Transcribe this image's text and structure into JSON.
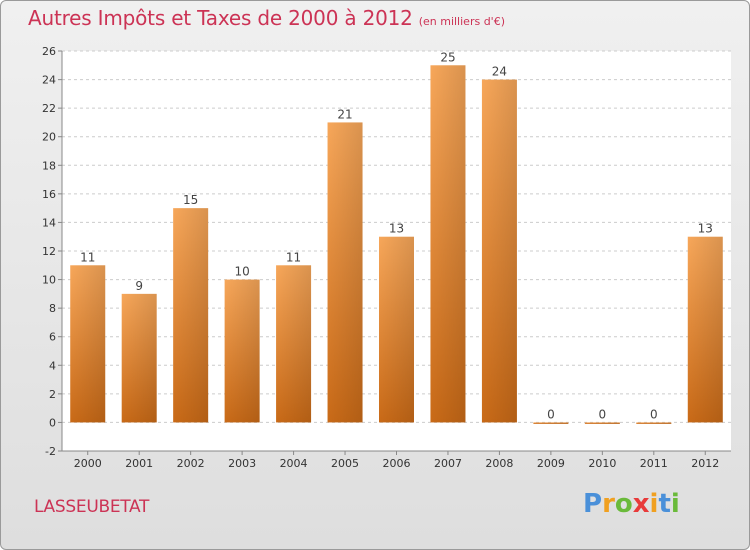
{
  "title": "Autres Impôts et Taxes de 2000 à 2012",
  "unit_note": "(en milliers d'€)",
  "commune": "LASSEUBETAT",
  "logo": {
    "text": "Proxiti",
    "letters": [
      {
        "ch": "P",
        "color": "#4a90d9"
      },
      {
        "ch": "r",
        "color": "#f0a020"
      },
      {
        "ch": "o",
        "color": "#6aba3a"
      },
      {
        "ch": "x",
        "color": "#e83a3a"
      },
      {
        "ch": "i",
        "color": "#f0a020"
      },
      {
        "ch": "t",
        "color": "#4a90d9"
      },
      {
        "ch": "i",
        "color": "#6aba3a"
      }
    ]
  },
  "colors": {
    "bar_top": "#f7a75a",
    "bar_bottom": "#c96a17",
    "title": "#cc3355",
    "grid": "#cccccc",
    "axis": "#888888",
    "text": "#333333"
  },
  "chart_data": {
    "type": "bar",
    "categories": [
      "2000",
      "2001",
      "2002",
      "2003",
      "2004",
      "2005",
      "2006",
      "2007",
      "2008",
      "2009",
      "2010",
      "2011",
      "2012"
    ],
    "values": [
      11,
      9,
      15,
      10,
      11,
      21,
      13,
      25,
      24,
      0,
      0,
      0,
      13
    ],
    "value_labels": [
      "11",
      "9",
      "15",
      "10",
      "11",
      "21",
      "13",
      "25",
      "24",
      "0",
      "0",
      "0",
      "13"
    ],
    "ylim": [
      -2,
      26
    ],
    "yticks": [
      -2,
      0,
      2,
      4,
      6,
      8,
      10,
      12,
      14,
      16,
      18,
      20,
      22,
      24,
      26
    ],
    "ytick_labels": [
      "-2",
      "0",
      "2",
      "4",
      "6",
      "8",
      "10",
      "12",
      "14",
      "16",
      "18",
      "20",
      "22",
      "24",
      "26"
    ],
    "grid": true,
    "legend": "none"
  }
}
